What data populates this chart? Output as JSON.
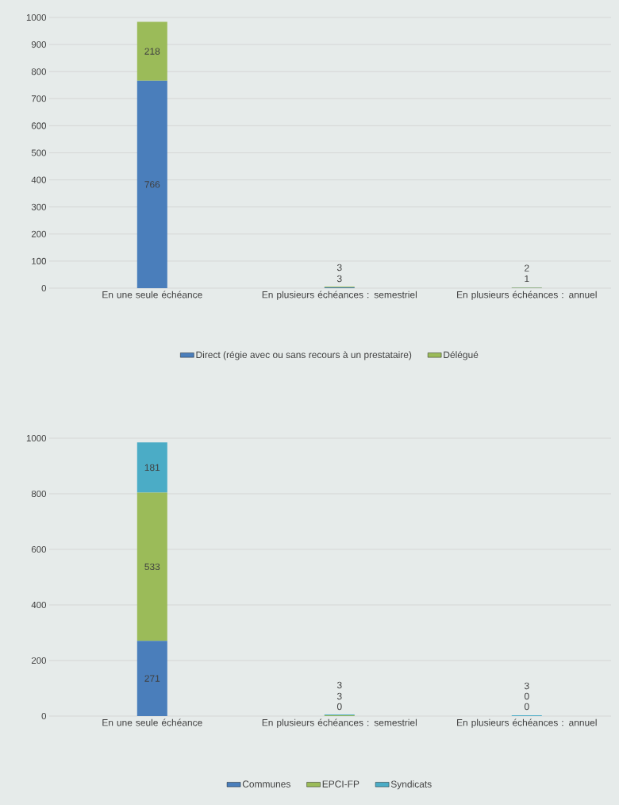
{
  "chart_data": [
    {
      "type": "bar",
      "stacked": true,
      "categories": [
        "En une seule échéance",
        "En plusieurs échéances : semestriel",
        "En plusieurs échéances : annuel"
      ],
      "series": [
        {
          "name": "Direct (régie avec ou sans recours à un prestataire)",
          "color": "#4a7ebb",
          "values": [
            766,
            3,
            1
          ]
        },
        {
          "name": "Délégué",
          "color": "#9bbb59",
          "values": [
            218,
            3,
            2
          ]
        }
      ],
      "ylim": [
        0,
        1000
      ],
      "yticks": [
        0,
        100,
        200,
        300,
        400,
        500,
        600,
        700,
        800,
        900,
        1000
      ],
      "grid": "y",
      "legend": "bottom",
      "data_labels": true
    },
    {
      "type": "bar",
      "stacked": true,
      "categories": [
        "En une seule échéance",
        "En plusieurs échéances : semestriel",
        "En plusieurs échéances : annuel"
      ],
      "series": [
        {
          "name": "Communes",
          "color": "#4a7ebb",
          "values": [
            271,
            0,
            0
          ]
        },
        {
          "name": "EPCI-FP",
          "color": "#9bbb59",
          "values": [
            533,
            3,
            0
          ]
        },
        {
          "name": "Syndicats",
          "color": "#4bacc6",
          "values": [
            181,
            3,
            3
          ]
        }
      ],
      "ylim": [
        0,
        1000
      ],
      "yticks": [
        0,
        200,
        400,
        600,
        800,
        1000
      ],
      "grid": "y",
      "legend": "bottom",
      "data_labels": true
    }
  ]
}
